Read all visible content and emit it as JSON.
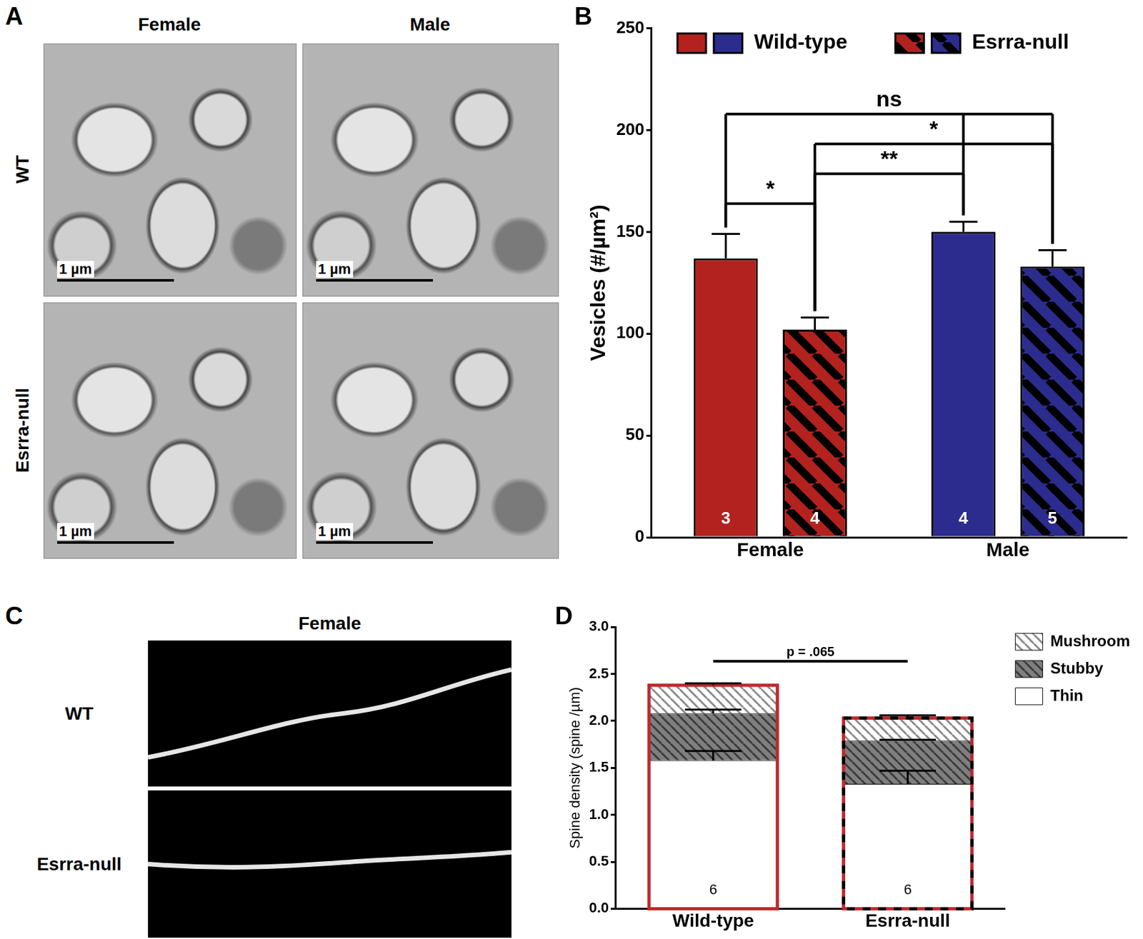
{
  "panel_labels": [
    "A",
    "B",
    "C",
    "D"
  ],
  "panel_a": {
    "columns": [
      "Female",
      "Male"
    ],
    "rows": [
      "WT",
      "Esrra-null"
    ],
    "scale_bar": "1 µm"
  },
  "panel_c": {
    "column": "Female",
    "rows": [
      "WT",
      "Esrra-null"
    ]
  },
  "chart_data": [
    {
      "type": "bar",
      "categories": [
        "Female",
        "Male"
      ],
      "y_label": "Vesicles (#/µm²)",
      "ylim": [
        0,
        250
      ],
      "yticks": [
        0,
        50,
        100,
        150,
        200,
        250
      ],
      "grid": false,
      "legend": "top",
      "series": [
        {
          "name": "Wild-type",
          "colors": [
            "#b3221e",
            "#2b2c8e"
          ],
          "values": [
            137,
            150
          ],
          "errors": [
            12,
            5
          ],
          "n": [
            3,
            4
          ]
        },
        {
          "name": "Esrra-null",
          "colors": [
            "#b3221e",
            "#2b2c8e"
          ],
          "values": [
            102,
            133
          ],
          "errors": [
            6,
            8
          ],
          "n": [
            4,
            5
          ]
        }
      ],
      "comparisons": [
        {
          "label": "*",
          "from": [
            [
              0,
              0
            ]
          ],
          "to": [
            [
              1,
              0
            ]
          ]
        },
        {
          "label": "**",
          "from": [
            [
              1,
              0
            ]
          ],
          "to": [
            [
              0,
              1
            ]
          ]
        },
        {
          "label": "*",
          "from": [
            [
              1,
              0
            ]
          ],
          "to": [
            [
              1,
              1
            ]
          ]
        },
        {
          "label": "ns",
          "from": [
            [
              0,
              0
            ]
          ],
          "to": [
            [
              0,
              1
            ],
            [
              1,
              1
            ]
          ]
        }
      ]
    },
    {
      "type": "bar",
      "stacked": true,
      "categories": [
        "Wild-type",
        "Esrra-null"
      ],
      "y_label": "Spine density (spine /µm)",
      "ylim": [
        0,
        3
      ],
      "yticks": [
        {
          "value": 0,
          "label": "0.0"
        },
        0.5,
        {
          "value": 1,
          "label": "1.0"
        },
        1.5,
        {
          "value": 2,
          "label": "2.0"
        },
        2.5,
        {
          "value": 3,
          "label": "3.0"
        }
      ],
      "grid": false,
      "legend": "right",
      "color": "#c0282d",
      "n": [
        6,
        6
      ],
      "series": [
        {
          "name": "Thin",
          "color": "#ffffff",
          "values": [
            1.58,
            1.33
          ],
          "errors": [
            0.1,
            0.14
          ]
        },
        {
          "name": "Stubby",
          "color": "#7f7f7f",
          "values": [
            0.5,
            0.46
          ],
          "errors": [
            0.04,
            0.01
          ]
        },
        {
          "name": "Mushroom",
          "color": "#ffffff",
          "values": [
            0.3,
            0.24
          ],
          "errors": [
            0.02,
            0.03
          ]
        }
      ],
      "comparisons": [
        {
          "label": "p = .065",
          "from": [
            [
              0,
              0
            ]
          ],
          "to": [
            [
              0,
              1
            ]
          ]
        }
      ]
    }
  ]
}
